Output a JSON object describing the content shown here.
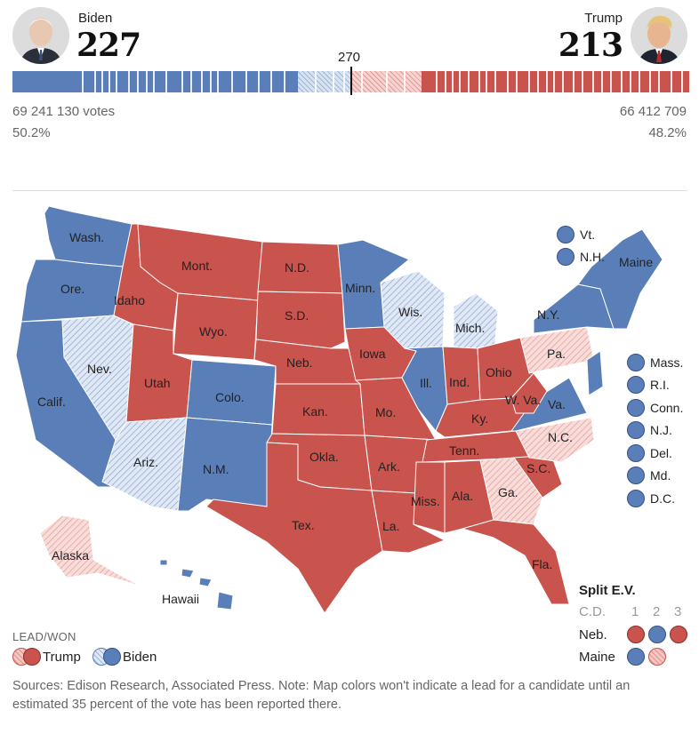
{
  "header": {
    "threshold": "270",
    "candidates": [
      {
        "name": "Biden",
        "ev": "227",
        "votes": "69 241 130 votes",
        "pct": "50.2%",
        "color": "#5a7fb8"
      },
      {
        "name": "Trump",
        "ev": "213",
        "votes": "66 412 709",
        "pct": "48.2%",
        "color": "#c9534d"
      }
    ],
    "bar": {
      "total_ev": 538,
      "biden_won": 227,
      "biden_lead": 64,
      "trump_lead": 34,
      "trump_won": 213
    }
  },
  "colors": {
    "dem_won": "#5a7fb8",
    "dem_lead": "#d8e3f2",
    "gop_won": "#c9534d",
    "gop_lead": "#f6d3d0",
    "border": "#ffffff"
  },
  "map": {
    "states": {
      "Wash.": "D",
      "Ore.": "D",
      "Calif.": "D",
      "Nev.": "Dl",
      "Idaho": "R",
      "Mont.": "R",
      "Wyo.": "R",
      "Utah": "R",
      "Ariz.": "Dl",
      "Colo.": "D",
      "N.M.": "D",
      "N.D.": "R",
      "S.D.": "R",
      "Neb.": "R",
      "Kan.": "R",
      "Okla.": "R",
      "Tex.": "R",
      "Minn.": "D",
      "Iowa": "R",
      "Mo.": "R",
      "Ark.": "R",
      "La.": "R",
      "Wis.": "Dl",
      "Ill.": "D",
      "Mich.": "Dl",
      "Ind.": "R",
      "Ohio": "R",
      "Ky.": "R",
      "Tenn.": "R",
      "Miss.": "R",
      "Ala.": "R",
      "Ga.": "Rl",
      "Fla.": "R",
      "S.C.": "R",
      "N.C.": "Rl",
      "Va.": "D",
      "W. Va.": "R",
      "Pa.": "Rl",
      "N.Y.": "D",
      "Maine": "D",
      "Alaska": "Rl",
      "Hawaii": "D"
    },
    "small_states": [
      "Vt.",
      "N.H."
    ],
    "east_small_states": [
      "Mass.",
      "R.I.",
      "Conn.",
      "N.J.",
      "Del.",
      "Md.",
      "D.C."
    ]
  },
  "split": {
    "title": "Split E.V.",
    "cd_label": "C.D.",
    "districts": [
      "1",
      "2",
      "3"
    ],
    "rows": [
      {
        "state": "Neb.",
        "dots": [
          "R",
          "D",
          "R"
        ]
      },
      {
        "state": "Maine",
        "dots": [
          "D",
          "Rl"
        ]
      }
    ]
  },
  "legend": {
    "title": "LEAD/WON",
    "items": [
      "Trump",
      "Biden"
    ]
  },
  "note": "Sources: Edison Research, Associated Press. Note: Map colors won't indicate a lead for a candidate until an estimated 35 percent of the vote has been reported there."
}
